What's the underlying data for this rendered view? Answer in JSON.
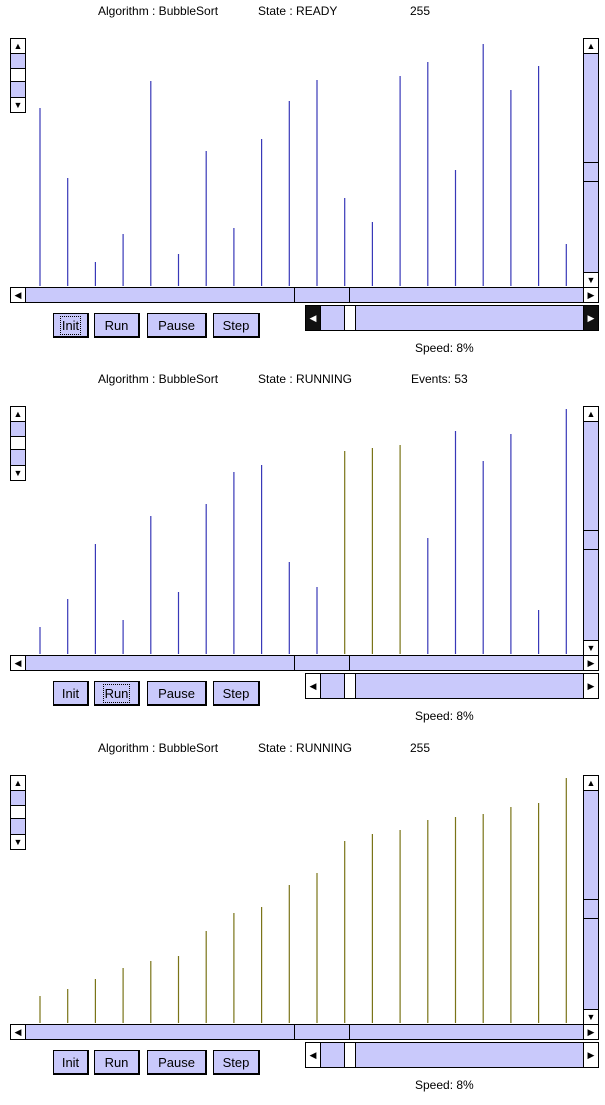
{
  "colors": {
    "unsorted": "#3838b8",
    "sorted": "#7a7418",
    "scroll_fill": "#c9c9fb",
    "speed_arrow_active_bg": "#111111"
  },
  "panels": [
    {
      "algorithm_text": "Algorithm : BubbleSort",
      "state_text": "State : READY",
      "counter_text": "255",
      "buttons": {
        "init": "Init",
        "run": "Run",
        "pause": "Pause",
        "step": "Step"
      },
      "focused_button": "init",
      "speed_label": "Speed: 8%",
      "speed_arrows_dark": true,
      "bars": [
        {
          "v": 178,
          "s": false
        },
        {
          "v": 108,
          "s": false
        },
        {
          "v": 24,
          "s": false
        },
        {
          "v": 52,
          "s": false
        },
        {
          "v": 205,
          "s": false
        },
        {
          "v": 32,
          "s": false
        },
        {
          "v": 135,
          "s": false
        },
        {
          "v": 58,
          "s": false
        },
        {
          "v": 147,
          "s": false
        },
        {
          "v": 185,
          "s": false
        },
        {
          "v": 206,
          "s": false
        },
        {
          "v": 88,
          "s": false
        },
        {
          "v": 64,
          "s": false
        },
        {
          "v": 210,
          "s": false
        },
        {
          "v": 224,
          "s": false
        },
        {
          "v": 116,
          "s": false
        },
        {
          "v": 242,
          "s": false
        },
        {
          "v": 196,
          "s": false
        },
        {
          "v": 220,
          "s": false
        },
        {
          "v": 42,
          "s": false
        }
      ]
    },
    {
      "algorithm_text": "Algorithm : BubbleSort",
      "state_text": "State : RUNNING",
      "counter_text": "Events: 53",
      "buttons": {
        "init": "Init",
        "run": "Run",
        "pause": "Pause",
        "step": "Step"
      },
      "focused_button": "run",
      "speed_label": "Speed: 8%",
      "speed_arrows_dark": false,
      "bars": [
        {
          "v": 27,
          "s": false
        },
        {
          "v": 55,
          "s": false
        },
        {
          "v": 110,
          "s": false
        },
        {
          "v": 34,
          "s": false
        },
        {
          "v": 138,
          "s": false
        },
        {
          "v": 62,
          "s": false
        },
        {
          "v": 150,
          "s": false
        },
        {
          "v": 182,
          "s": false
        },
        {
          "v": 189,
          "s": false
        },
        {
          "v": 92,
          "s": false
        },
        {
          "v": 67,
          "s": false
        },
        {
          "v": 203,
          "s": true
        },
        {
          "v": 206,
          "s": true
        },
        {
          "v": 209,
          "s": true
        },
        {
          "v": 116,
          "s": false
        },
        {
          "v": 223,
          "s": false
        },
        {
          "v": 193,
          "s": false
        },
        {
          "v": 220,
          "s": false
        },
        {
          "v": 44,
          "s": false
        },
        {
          "v": 245,
          "s": false
        }
      ]
    },
    {
      "algorithm_text": "Algorithm : BubbleSort",
      "state_text": "State : RUNNING",
      "counter_text": "255",
      "buttons": {
        "init": "Init",
        "run": "Run",
        "pause": "Pause",
        "step": "Step"
      },
      "focused_button": "",
      "speed_label": "Speed: 8%",
      "speed_arrows_dark": false,
      "bars": [
        {
          "v": 27,
          "s": true
        },
        {
          "v": 34,
          "s": true
        },
        {
          "v": 44,
          "s": true
        },
        {
          "v": 55,
          "s": true
        },
        {
          "v": 62,
          "s": true
        },
        {
          "v": 67,
          "s": true
        },
        {
          "v": 92,
          "s": true
        },
        {
          "v": 110,
          "s": true
        },
        {
          "v": 116,
          "s": true
        },
        {
          "v": 138,
          "s": true
        },
        {
          "v": 150,
          "s": true
        },
        {
          "v": 182,
          "s": true
        },
        {
          "v": 189,
          "s": true
        },
        {
          "v": 193,
          "s": true
        },
        {
          "v": 203,
          "s": true
        },
        {
          "v": 206,
          "s": true
        },
        {
          "v": 209,
          "s": true
        },
        {
          "v": 216,
          "s": true
        },
        {
          "v": 220,
          "s": true
        },
        {
          "v": 245,
          "s": true
        }
      ]
    }
  ]
}
